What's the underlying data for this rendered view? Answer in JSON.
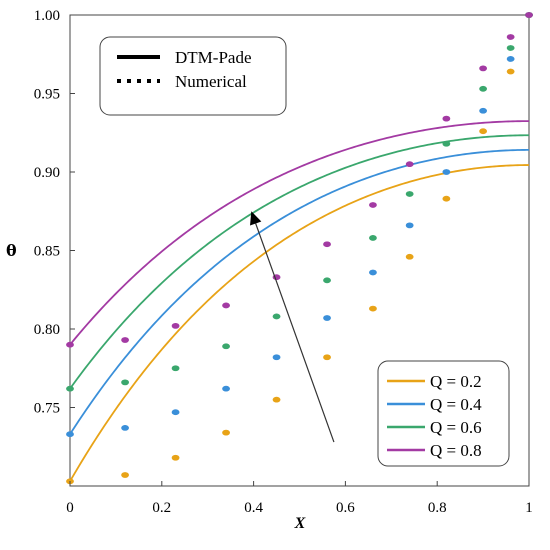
{
  "chart_data": {
    "type": "line",
    "xlabel": "X",
    "ylabel": "θ",
    "xlim": [
      0,
      1
    ],
    "ylim": [
      0.7,
      1.0
    ],
    "x_ticks": [
      "0",
      "0.2",
      "0.4",
      "0.6",
      "0.8",
      "1"
    ],
    "y_ticks": [
      "0.75",
      "0.80",
      "0.85",
      "0.90",
      "0.95",
      "1.00"
    ],
    "style_legend": [
      {
        "label": "DTM-Pade",
        "style": "solid"
      },
      {
        "label": "Numerical",
        "style": "dotted"
      }
    ],
    "series": [
      {
        "name": "Q = 0.2",
        "color": "#e8a317",
        "theta0": 0.703,
        "x": [
          0,
          0.12,
          0.23,
          0.34,
          0.45,
          0.56,
          0.66,
          0.74,
          0.82,
          0.9,
          0.96,
          1
        ],
        "y": [
          0.703,
          0.707,
          0.718,
          0.734,
          0.755,
          0.782,
          0.813,
          0.846,
          0.883,
          0.926,
          0.964,
          1.0
        ]
      },
      {
        "name": "Q = 0.4",
        "color": "#3a8fd9",
        "theta0": 0.733,
        "x": [
          0,
          0.12,
          0.23,
          0.34,
          0.45,
          0.56,
          0.66,
          0.74,
          0.82,
          0.9,
          0.96,
          1
        ],
        "y": [
          0.733,
          0.737,
          0.747,
          0.762,
          0.782,
          0.807,
          0.836,
          0.866,
          0.9,
          0.939,
          0.972,
          1.0
        ]
      },
      {
        "name": "Q = 0.6",
        "color": "#3aa76d",
        "theta0": 0.762,
        "x": [
          0,
          0.12,
          0.23,
          0.34,
          0.45,
          0.56,
          0.66,
          0.74,
          0.82,
          0.9,
          0.96,
          1
        ],
        "y": [
          0.762,
          0.766,
          0.775,
          0.789,
          0.808,
          0.831,
          0.858,
          0.886,
          0.918,
          0.953,
          0.979,
          1.0
        ]
      },
      {
        "name": "Q = 0.8",
        "color": "#a33aa3",
        "theta0": 0.79,
        "x": [
          0,
          0.12,
          0.23,
          0.34,
          0.45,
          0.56,
          0.66,
          0.74,
          0.82,
          0.9,
          0.96,
          1
        ],
        "y": [
          0.79,
          0.793,
          0.802,
          0.815,
          0.833,
          0.854,
          0.879,
          0.905,
          0.934,
          0.966,
          0.986,
          1.0
        ]
      }
    ],
    "annotation_arrow": {
      "from": [
        0.575,
        0.728
      ],
      "to": [
        0.395,
        0.875
      ]
    },
    "legend_position": "bottom-right",
    "grid": false
  }
}
